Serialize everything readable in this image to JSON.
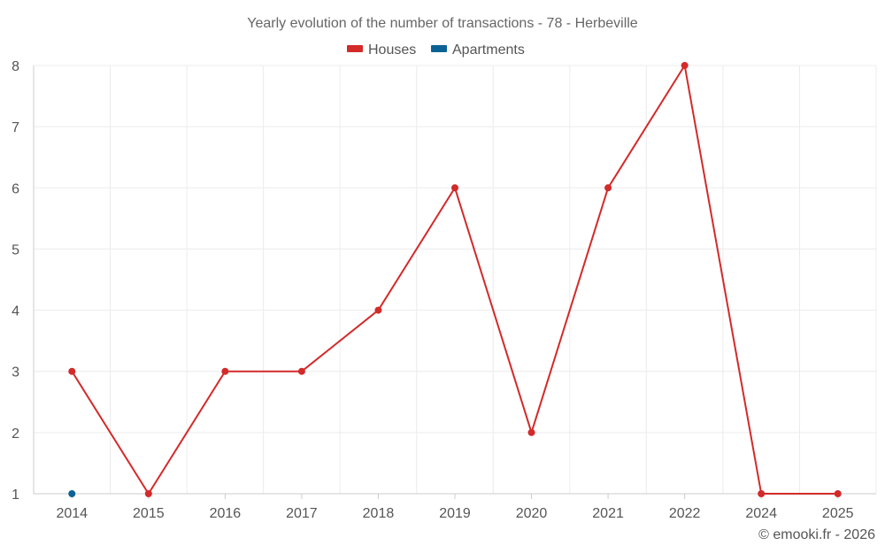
{
  "chart_data": {
    "type": "line",
    "title": "Yearly evolution of the number of transactions - 78 - Herbeville",
    "categories": [
      "2014",
      "2015",
      "2016",
      "2017",
      "2018",
      "2019",
      "2020",
      "2021",
      "2022",
      "2024",
      "2025"
    ],
    "series": [
      {
        "name": "Houses",
        "color": "#d32a2a",
        "values": [
          3,
          1,
          3,
          3,
          4,
          6,
          2,
          6,
          8,
          1,
          1
        ]
      },
      {
        "name": "Apartments",
        "color": "#0b6296",
        "values": [
          1,
          null,
          null,
          null,
          null,
          null,
          null,
          null,
          null,
          null,
          null
        ]
      }
    ],
    "ylim": [
      1,
      8
    ],
    "yticks": [
      "1",
      "2",
      "3",
      "4",
      "5",
      "6",
      "7",
      "8"
    ],
    "grid": true,
    "legend_position": "top-center"
  },
  "credit": "© emooki.fr - 2026"
}
